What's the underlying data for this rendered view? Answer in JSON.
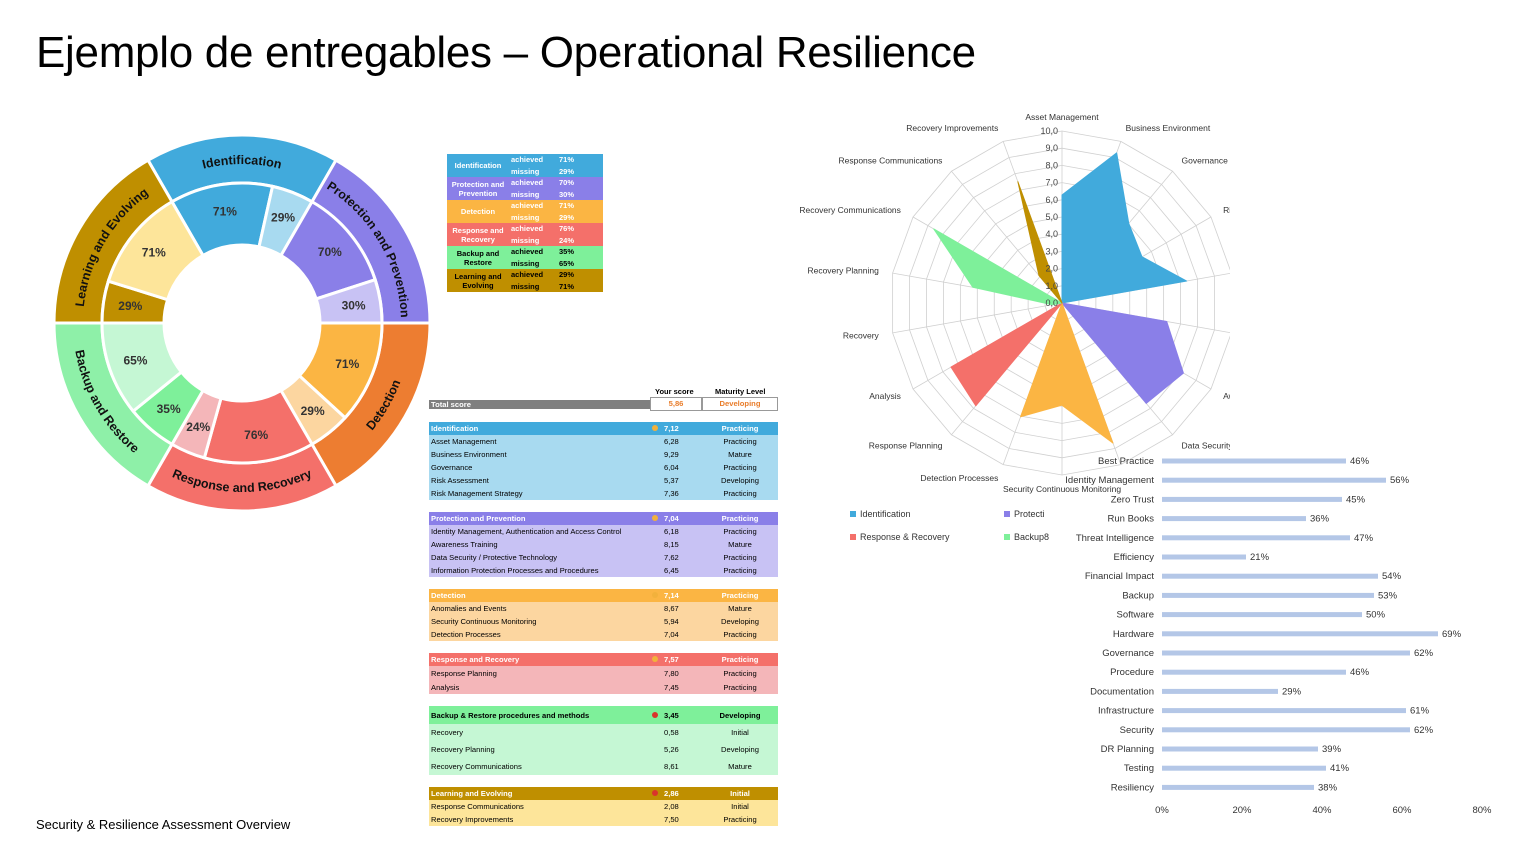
{
  "title": "Ejemplo de entregables – Operational Resilience",
  "footer": "Security & Resilience Assessment Overview",
  "chart_data": [
    {
      "type": "pie",
      "subtype": "sunburst-donut",
      "rings": [
        {
          "name": "Identification",
          "color": "#41aadc",
          "inner_color": "#a8daf0",
          "achieved": 71,
          "missing": 29,
          "achieved_label": "71%",
          "missing_label": "29%"
        },
        {
          "name": "Protection and Prevention",
          "color": "#8a7fe8",
          "inner_color": "#c8c2f4",
          "achieved": 70,
          "missing": 30,
          "achieved_label": "70%",
          "missing_label": "30%"
        },
        {
          "name": "Detection",
          "color": "#ed7d31",
          "inner_color": "#fcd6a0",
          "achieved_color": "#fbb543",
          "achieved": 71,
          "missing": 29,
          "achieved_label": "71%",
          "missing_label": "29%"
        },
        {
          "name": "Response and Recovery",
          "color": "#f4706a",
          "inner_color": "#f4b6b9",
          "achieved": 76,
          "missing": 24,
          "achieved_label": "76%",
          "missing_label": "24%"
        },
        {
          "name": "Backup and Restore",
          "color": "#8ef0a8",
          "inner_color": "#c5f7d4",
          "achieved_color": "#7ef09a",
          "achieved": 35,
          "missing": 65,
          "achieved_label": "35%",
          "missing_label": "65%"
        },
        {
          "name": "Learning and Evolving",
          "color": "#bf8f00",
          "inner_color": "#fde59a",
          "achieved": 29,
          "missing": 71,
          "achieved_label": "29%",
          "missing_label": "71%"
        }
      ]
    },
    {
      "type": "table",
      "name": "achieved-missing",
      "achieved_label": "achieved",
      "missing_label": "missing",
      "rows": [
        {
          "cat": "Identification",
          "achieved": "71%",
          "missing": "29%",
          "bg": "#41aadc",
          "fg": "#ffffff"
        },
        {
          "cat": "Protection and Prevention",
          "achieved": "70%",
          "missing": "30%",
          "bg": "#8a7fe8",
          "fg": "#ffffff"
        },
        {
          "cat": "Detection",
          "achieved": "71%",
          "missing": "29%",
          "bg": "#fbb543",
          "fg": "#ffffff"
        },
        {
          "cat": "Response and Recovery",
          "achieved": "76%",
          "missing": "24%",
          "bg": "#f4706a",
          "fg": "#ffffff"
        },
        {
          "cat": "Backup and Restore",
          "achieved": "35%",
          "missing": "65%",
          "bg": "#7ef09a",
          "fg": "#000000"
        },
        {
          "cat": "Learning and Evolving",
          "achieved": "29%",
          "missing": "71%",
          "bg": "#bf8f00",
          "fg": "#000000"
        }
      ]
    },
    {
      "type": "table",
      "name": "maturity-scores",
      "col_score": "Your score",
      "col_level": "Maturity Level",
      "total": {
        "label": "Total score",
        "score": "5,86",
        "level": "Developing"
      },
      "groups": [
        {
          "name": "Identification",
          "score": "7,12",
          "level": "Practicing",
          "head": "#41aadc",
          "body": "#a8daf0",
          "dot": "#f2b13c",
          "hfg": "#ffffff",
          "items": [
            [
              "Asset Management",
              "6,28",
              "Practicing"
            ],
            [
              "Business Environment",
              "9,29",
              "Mature"
            ],
            [
              "Governance",
              "6,04",
              "Practicing"
            ],
            [
              "Risk Assessment",
              "5,37",
              "Developing"
            ],
            [
              "Risk Management Strategy",
              "7,36",
              "Practicing"
            ]
          ]
        },
        {
          "name": "Protection and Prevention",
          "score": "7,04",
          "level": "Practicing",
          "head": "#8a7fe8",
          "body": "#c8c2f4",
          "dot": "#f2b13c",
          "hfg": "#ffffff",
          "items": [
            [
              "Identity Management, Authentication and Access Control",
              "6,18",
              "Practicing"
            ],
            [
              "Awareness Training",
              "8,15",
              "Mature"
            ],
            [
              "Data Security / Protective Technology",
              "7,62",
              "Practicing"
            ],
            [
              "Information Protection Processes and Procedures",
              "6,45",
              "Practicing"
            ]
          ]
        },
        {
          "name": "Detection",
          "score": "7,14",
          "level": "Practicing",
          "head": "#fbb543",
          "body": "#fcd6a0",
          "dot": "#f2b13c",
          "hfg": "#ffffff",
          "items": [
            [
              "Anomalies and Events",
              "8,67",
              "Mature"
            ],
            [
              "Security Continuous Monitoring",
              "5,94",
              "Developing"
            ],
            [
              "Detection Processes",
              "7,04",
              "Practicing"
            ]
          ]
        },
        {
          "name": "Response and Recovery",
          "score": "7,57",
          "level": "Practicing",
          "head": "#f4706a",
          "body": "#f4b6b9",
          "dot": "#f2b13c",
          "hfg": "#ffffff",
          "items": [
            [
              "Response Planning",
              "7,80",
              "Practicing"
            ],
            [
              "Analysis",
              "7,45",
              "Practicing"
            ]
          ]
        },
        {
          "name": "Backup & Restore procedures and methods",
          "score": "3,45",
          "level": "Developing",
          "head": "#7ef09a",
          "body": "#c5f7d4",
          "dot": "#d9342b",
          "hfg": "#000000",
          "items": [
            [
              "Recovery",
              "0,58",
              "Initial"
            ],
            [
              "Recovery Planning",
              "5,26",
              "Developing"
            ],
            [
              "Recovery Communications",
              "8,61",
              "Mature"
            ]
          ]
        },
        {
          "name": "Learning and Evolving",
          "score": "2,86",
          "level": "Initial",
          "head": "#bf8f00",
          "body": "#fde59a",
          "dot": "#d9342b",
          "hfg": "#ffffff",
          "items": [
            [
              "Response Communications",
              "2,08",
              "Initial"
            ],
            [
              "Recovery Improvements",
              "7,50",
              "Practicing"
            ]
          ]
        }
      ]
    },
    {
      "type": "radar",
      "rmax": 10,
      "ticks": [
        "0,0",
        "1,0",
        "2,0",
        "3,0",
        "4,0",
        "5,0",
        "6,0",
        "7,0",
        "8,0",
        "9,0",
        "10,0"
      ],
      "axes": [
        "Asset Management",
        "Business Environment",
        "Governance",
        "Risk Assessment",
        "Risk Management Strategy",
        "Identity Management, Authentication, and Access Control",
        "Awareness Training",
        "Data Security / Protective Technology",
        "Anomalies and Events",
        "Security Continuous Monitoring",
        "Detection Processes",
        "Response Planning",
        "Analysis",
        "Recovery",
        "Recovery Planning",
        "Recovery Communications",
        "Response Communications",
        "Recovery Improvements"
      ],
      "axis_labels": [
        "Asset Management",
        "Business Environment",
        "Governance",
        "Risk Assessment",
        "Risk Management Strategy",
        "Identity Management, Authentication, and Access Control",
        "Awareness Training",
        "Data Security / Protective Technology",
        "",
        "Security Continuous Monitoring",
        "Detection Processes",
        "Response Planning",
        "Analysis",
        "Recovery",
        "Recovery Planning",
        "Recovery Communications",
        "Response Communications",
        "Recovery Improvements"
      ],
      "series": [
        {
          "name": "Identification",
          "color": "#41aadc",
          "values": [
            6.28,
            9.29,
            6.04,
            5.37,
            7.36,
            0,
            0,
            0,
            0,
            0,
            0,
            0,
            0,
            0,
            0,
            0,
            0,
            0
          ]
        },
        {
          "name": "Protecti",
          "color": "#8a7fe8",
          "values": [
            0,
            0,
            0,
            0,
            0,
            6.18,
            8.15,
            7.62,
            0,
            0,
            0,
            0,
            0,
            0,
            0,
            0,
            0,
            0
          ]
        },
        {
          "name": "Detection",
          "color": "#fbb543",
          "values": [
            0,
            0,
            0,
            0,
            0,
            0,
            0,
            0,
            8.67,
            5.94,
            7.04,
            0,
            0,
            0,
            0,
            0,
            0,
            0
          ]
        },
        {
          "name": "Response & Recovery",
          "color": "#f4706a",
          "values": [
            0,
            0,
            0,
            0,
            0,
            0,
            0,
            0,
            0,
            0,
            0,
            7.8,
            7.45,
            0,
            0,
            0,
            0,
            0
          ]
        },
        {
          "name": "Backup&",
          "color": "#7ef09a",
          "values": [
            0,
            0,
            0,
            0,
            0,
            0,
            0,
            0,
            0,
            0,
            0,
            0,
            0,
            0.58,
            5.26,
            8.61,
            0,
            0
          ]
        },
        {
          "name": "Learning and Evolving",
          "color": "#bf8f00",
          "values": [
            0,
            0,
            0,
            0,
            0,
            0,
            0,
            0,
            0,
            0,
            0,
            0,
            0,
            0,
            0,
            0,
            2.08,
            7.5
          ]
        }
      ],
      "legend": [
        {
          "label": "Identification",
          "color": "#41aadc"
        },
        {
          "label": "Protecti",
          "color": "#8a7fe8"
        },
        {
          "label": "Response & Recovery",
          "color": "#f4706a"
        },
        {
          "label": "Backup8",
          "color": "#7ef09a"
        }
      ]
    },
    {
      "type": "bar",
      "orientation": "horizontal",
      "color": "#b4c7e7",
      "categories": [
        "Best Practice",
        "Identity Management",
        "Zero Trust",
        "Run Books",
        "Threat Intelligence",
        "Efficiency",
        "Financial Impact",
        "Backup",
        "Software",
        "Hardware",
        "Governance",
        "Procedure",
        "Documentation",
        "Infrastructure",
        "Security",
        "DR Planning",
        "Testing",
        "Resiliency"
      ],
      "values": [
        46,
        56,
        45,
        36,
        47,
        21,
        54,
        53,
        50,
        69,
        62,
        46,
        29,
        61,
        62,
        39,
        41,
        38
      ],
      "value_labels": [
        "46%",
        "56%",
        "45%",
        "36%",
        "47%",
        "21%",
        "54%",
        "53%",
        "50%",
        "69%",
        "62%",
        "46%",
        "29%",
        "61%",
        "62%",
        "39%",
        "41%",
        "38%"
      ],
      "xlim": [
        0,
        80
      ],
      "xticks": [
        "0%",
        "20%",
        "40%",
        "60%",
        "80%"
      ]
    }
  ]
}
